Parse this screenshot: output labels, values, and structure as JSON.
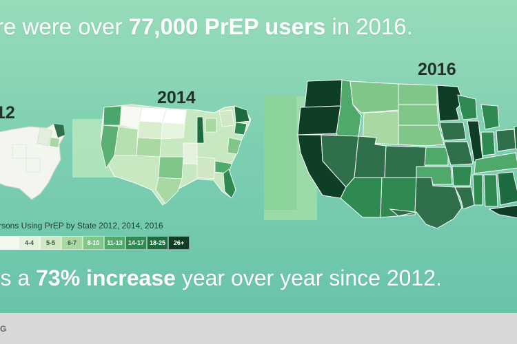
{
  "headline_top": {
    "pre": "re were over ",
    "bold": "77,000 PrEP users",
    "post": " in 2016."
  },
  "headline_bottom": {
    "pre": "’s a ",
    "bold": "73% increase",
    "post": " year over year since 2012."
  },
  "years": {
    "y2012": "12",
    "y2014": "2014",
    "y2016": "2016"
  },
  "legend": {
    "title": "rsons Using PrEP by State 2012, 2014, 2016",
    "items": [
      {
        "label": "",
        "color": "#f3f8ef",
        "text_color": "#3a5a4a"
      },
      {
        "label": "4-4",
        "color": "#e4f1dc",
        "text_color": "#3a5a4a"
      },
      {
        "label": "5-5",
        "color": "#cfe7c4",
        "text_color": "#3a5a4a"
      },
      {
        "label": "6-7",
        "color": "#a9d8a2",
        "text_color": "#3a5a4a"
      },
      {
        "label": "8-10",
        "color": "#7fc688",
        "text_color": "#ffffff"
      },
      {
        "label": "11-13",
        "color": "#4fa96b",
        "text_color": "#ffffff"
      },
      {
        "label": "14-17",
        "color": "#2f8a52",
        "text_color": "#ffffff"
      },
      {
        "label": "18-25",
        "color": "#1d6b3f",
        "text_color": "#ffffff"
      },
      {
        "label": "26+",
        "color": "#0e3f26",
        "text_color": "#ffffff"
      }
    ]
  },
  "footer": {
    "text": "G"
  }
}
